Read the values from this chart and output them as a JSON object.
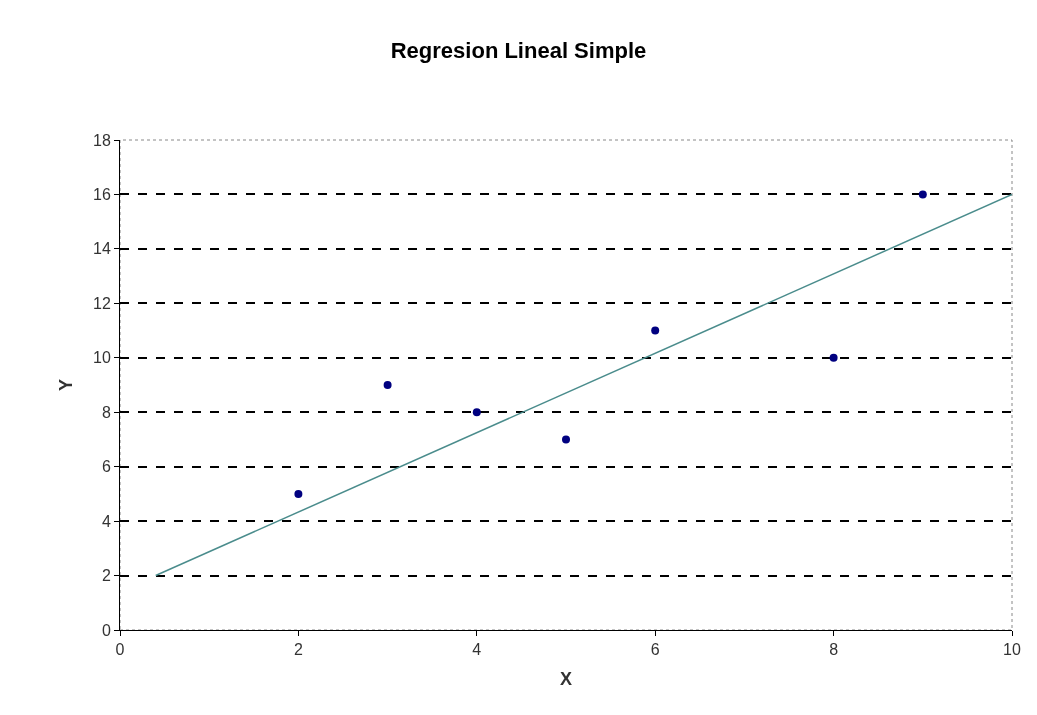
{
  "chart_data": {
    "type": "scatter",
    "title": "Regresion Lineal Simple",
    "xlabel": "X",
    "ylabel": "Y",
    "xlim": [
      0,
      10
    ],
    "xticks": [
      0,
      2,
      4,
      6,
      8,
      10
    ],
    "ylim": [
      0,
      18
    ],
    "yticks": [
      0,
      2,
      4,
      6,
      8,
      10,
      12,
      14,
      16,
      18
    ],
    "grid": "y",
    "marker": "circle",
    "series": [
      {
        "color": "#000080",
        "x": [
          2,
          3,
          4,
          5,
          6,
          8,
          9
        ],
        "values": [
          5,
          9,
          8,
          7,
          11,
          10,
          16
        ]
      },
      {
        "type": "line",
        "color": "#4a8c8c",
        "marker": "none",
        "x": [
          0.4,
          10
        ],
        "values": [
          2,
          16
        ]
      }
    ]
  }
}
